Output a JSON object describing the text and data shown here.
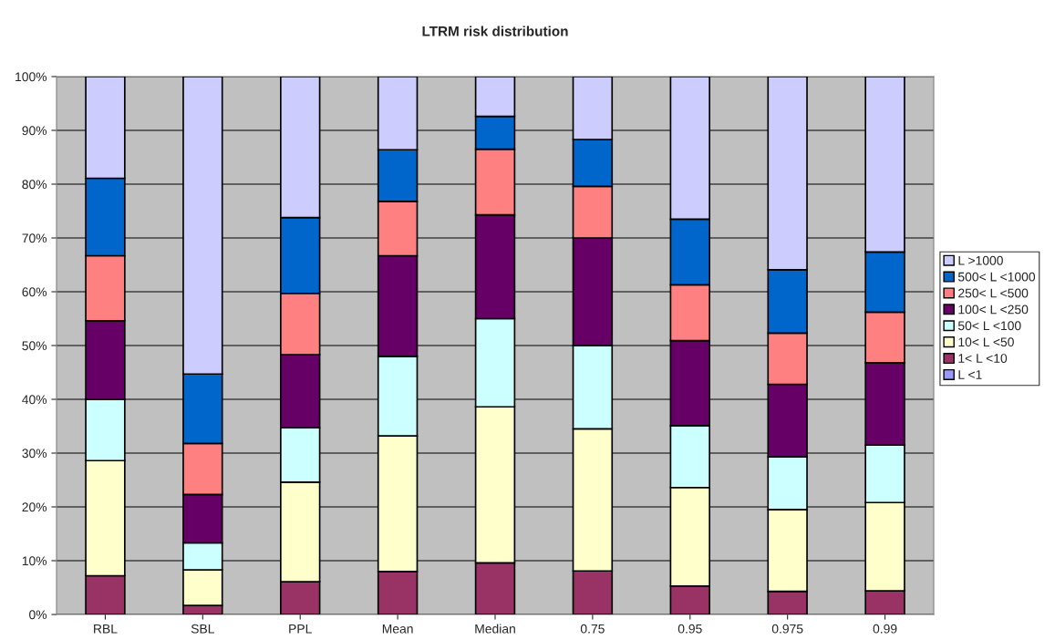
{
  "chart_data": {
    "type": "bar",
    "title": "LTRM risk distribution",
    "stacked": true,
    "categories": [
      "RBL",
      "SBL",
      "PPL",
      "Mean",
      "Median",
      "0.75",
      "0.95",
      "0.975",
      "0.99"
    ],
    "series": [
      {
        "name": "L <1",
        "color": "#9999ff",
        "values": [
          null,
          null,
          null,
          null,
          null,
          null,
          null,
          null,
          null
        ]
      },
      {
        "name": "1< L <10",
        "color": "#993366",
        "values": [
          7.2,
          1.7,
          6.1,
          8.0,
          9.6,
          8.1,
          5.3,
          4.3,
          4.4
        ]
      },
      {
        "name": "10< L <50",
        "color": "#ffffcc",
        "values": [
          21.4,
          6.6,
          18.5,
          25.2,
          29.0,
          26.4,
          18.3,
          15.2,
          16.4
        ]
      },
      {
        "name": "50< L <100",
        "color": "#ccffff",
        "values": [
          11.4,
          5.0,
          10.1,
          14.8,
          16.4,
          15.5,
          11.5,
          9.8,
          10.7
        ]
      },
      {
        "name": "100< L <250",
        "color": "#660066",
        "values": [
          14.6,
          9.0,
          13.6,
          18.7,
          19.3,
          20.0,
          15.8,
          13.5,
          15.3
        ]
      },
      {
        "name": "250< L <500",
        "color": "#ff8080",
        "values": [
          12.1,
          9.5,
          11.4,
          10.1,
          12.2,
          9.6,
          10.4,
          9.5,
          9.4
        ]
      },
      {
        "name": "500< L <1000",
        "color": "#0066cc",
        "values": [
          14.4,
          12.9,
          14.1,
          9.6,
          6.1,
          8.7,
          12.2,
          11.8,
          11.2
        ]
      },
      {
        "name": "L >1000",
        "color": "#ccccff",
        "values": [
          18.9,
          55.3,
          26.2,
          13.6,
          7.4,
          11.7,
          26.5,
          35.9,
          32.6
        ]
      }
    ],
    "ylim": [
      0,
      100
    ],
    "yticks": [
      {
        "value": 0,
        "label": "0%"
      },
      {
        "value": 10,
        "label": "10%"
      },
      {
        "value": 20,
        "label": "20%"
      },
      {
        "value": 30,
        "label": "30%"
      },
      {
        "value": 40,
        "label": "40%"
      },
      {
        "value": 50,
        "label": "50%"
      },
      {
        "value": 60,
        "label": "60%"
      },
      {
        "value": 70,
        "label": "70%"
      },
      {
        "value": 80,
        "label": "80%"
      },
      {
        "value": 90,
        "label": "90%"
      },
      {
        "value": 100,
        "label": "100%"
      }
    ],
    "grid": "y",
    "legend": "right"
  }
}
